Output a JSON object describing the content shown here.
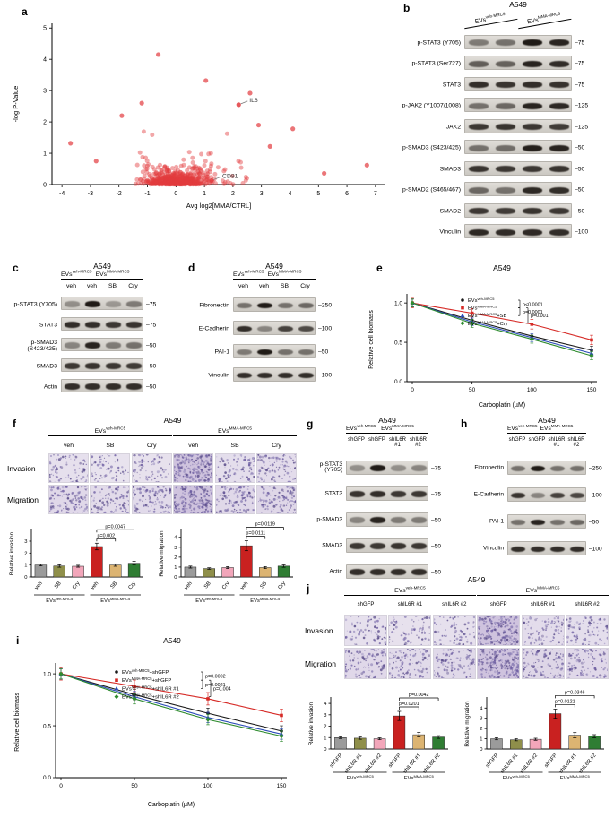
{
  "figure": {
    "bg": "#ffffff",
    "cell_line": "A549"
  },
  "panels": {
    "a": {
      "label": "a",
      "chart_data": {
        "type": "scatter",
        "xlabel": "Avg log2[MMA/CTRL]",
        "ylabel": "-log P-Value",
        "xlim": [
          -4.35,
          7.35
        ],
        "ylim": [
          0,
          5
        ],
        "xticks": [
          -4,
          -3,
          -2,
          -1,
          0,
          1,
          2,
          3,
          4,
          5,
          6,
          7
        ],
        "yticks": [
          0,
          1,
          2,
          3,
          4,
          5
        ],
        "point_color": "#e23b3e",
        "annotations": [
          {
            "label": "IL6",
            "x": 2.2,
            "y": 2.55
          },
          {
            "label": "CD81",
            "x": 1.25,
            "y": 0.13
          }
        ],
        "notable_points": [
          [
            -0.62,
            4.15
          ],
          [
            1.05,
            3.32
          ],
          [
            2.6,
            2.92
          ],
          [
            -1.9,
            2.2
          ],
          [
            6.7,
            0.62
          ],
          [
            -3.7,
            1.32
          ],
          [
            4.1,
            1.78
          ],
          [
            3.3,
            1.22
          ],
          [
            -2.8,
            0.75
          ],
          [
            5.2,
            0.36
          ],
          [
            2.9,
            1.9
          ],
          [
            -1.2,
            2.6
          ]
        ],
        "cloud": {
          "n": 540,
          "seed": 987654
        }
      }
    },
    "b": {
      "label": "b",
      "title": "A549",
      "groups": [
        {
          "name": "EVs^{veh-MRC5}",
          "lanes": [
            "",
            ""
          ]
        },
        {
          "name": "EVs^{MMA-MRC5}",
          "lanes": [
            "",
            ""
          ]
        }
      ],
      "rows": [
        {
          "label": "p-STAT3 (Y705)",
          "mw": "75",
          "bands": [
            0.45,
            0.5,
            0.95,
            0.9
          ]
        },
        {
          "label": "p-STAT3 (Ser727)",
          "mw": "75",
          "bands": [
            0.6,
            0.58,
            0.9,
            0.86
          ]
        },
        {
          "label": "STAT3",
          "mw": "75",
          "bands": [
            0.85,
            0.82,
            0.85,
            0.83
          ]
        },
        {
          "label": "p-JAK2 (Y1007/1008)",
          "mw": "125",
          "bands": [
            0.5,
            0.55,
            0.9,
            0.88
          ]
        },
        {
          "label": "JAK2",
          "mw": "125",
          "bands": [
            0.8,
            0.82,
            0.8,
            0.78
          ]
        },
        {
          "label": "p-SMAD3 (S423/425)",
          "mw": "50",
          "bands": [
            0.5,
            0.52,
            0.92,
            0.9
          ]
        },
        {
          "label": "SMAD3",
          "mw": "50",
          "bands": [
            0.82,
            0.8,
            0.8,
            0.82
          ]
        },
        {
          "label": "p-SMAD2 (S465/467)",
          "mw": "50",
          "bands": [
            0.55,
            0.5,
            0.88,
            0.85
          ]
        },
        {
          "label": "SMAD2",
          "mw": "50",
          "bands": [
            0.8,
            0.78,
            0.82,
            0.8
          ]
        },
        {
          "label": "Vinculin",
          "mw": "100",
          "bands": [
            0.88,
            0.86,
            0.87,
            0.85
          ]
        }
      ]
    },
    "c": {
      "label": "c",
      "title": "A549",
      "groups": [
        {
          "name": "EVs^{veh-MRC5}",
          "lanes": [
            "veh"
          ]
        },
        {
          "name": "EVs^{MMA-MRC5}",
          "lanes": [
            "veh",
            "SB",
            "Cry"
          ]
        }
      ],
      "rows": [
        {
          "label": "p-STAT3 (Y705)",
          "mw": "75",
          "bands": [
            0.35,
            0.95,
            0.3,
            0.45
          ]
        },
        {
          "label": "STAT3",
          "mw": "75",
          "bands": [
            0.85,
            0.85,
            0.8,
            0.82
          ]
        },
        {
          "label": "p-SMAD3 (S423/425)",
          "mw": "50",
          "bands": [
            0.4,
            0.9,
            0.45,
            0.5
          ]
        },
        {
          "label": "SMAD3",
          "mw": "50",
          "bands": [
            0.8,
            0.82,
            0.8,
            0.78
          ]
        },
        {
          "label": "Actin",
          "mw": "50",
          "bands": [
            0.85,
            0.85,
            0.85,
            0.85
          ]
        }
      ]
    },
    "d": {
      "label": "d",
      "title": "A549",
      "groups": [
        {
          "name": "EVs^{veh-MRC5}",
          "lanes": [
            "veh"
          ]
        },
        {
          "name": "EVs^{MMA-MRC5}",
          "lanes": [
            "veh",
            "SB",
            "Cry"
          ]
        }
      ],
      "rows": [
        {
          "label": "Fibronectin",
          "mw": "250",
          "bands": [
            0.5,
            0.95,
            0.5,
            0.55
          ]
        },
        {
          "label": "E-Cadherin",
          "mw": "100",
          "bands": [
            0.85,
            0.4,
            0.75,
            0.7
          ]
        },
        {
          "label": "PAI-1",
          "mw": "50",
          "bands": [
            0.45,
            0.95,
            0.5,
            0.5
          ]
        },
        {
          "label": "Vinculin",
          "mw": "100",
          "bands": [
            0.85,
            0.85,
            0.85,
            0.85
          ]
        }
      ]
    },
    "e": {
      "label": "e",
      "chart_data": {
        "type": "line",
        "title": "A549",
        "xlabel": "Carboplatin (µM)",
        "ylabel": "Relative cell biomass",
        "x": [
          0,
          50,
          100,
          150
        ],
        "yticks": [
          0,
          0.5,
          1
        ],
        "ylim": [
          0,
          1
        ],
        "series": [
          {
            "name": "EVs^{veh-MRC5}",
            "color": "#1a1a1a",
            "marker": "circle",
            "err": 0.05,
            "values": [
              1.0,
              0.78,
              0.58,
              0.4
            ]
          },
          {
            "name": "EVs^{MMA-MRC5}",
            "color": "#d62a26",
            "marker": "square",
            "err": 0.06,
            "values": [
              1.0,
              0.87,
              0.73,
              0.53
            ]
          },
          {
            "name": "EVs^{MMA-MRC5}+SB",
            "color": "#2c4cb8",
            "marker": "triangle",
            "err": 0.05,
            "values": [
              1.0,
              0.76,
              0.56,
              0.36
            ]
          },
          {
            "name": "EVs^{MMA-MRC5}+Cry",
            "color": "#2e8b2e",
            "marker": "diamond",
            "err": 0.05,
            "values": [
              1.0,
              0.74,
              0.54,
              0.33
            ]
          }
        ],
        "comparisons": [
          {
            "a": 0,
            "b": 1,
            "p": "p<0.0001"
          },
          {
            "a": 1,
            "b": 2,
            "p": "p=0.0001"
          },
          {
            "a": 1,
            "b": 3,
            "p": "p=0.001"
          }
        ]
      }
    },
    "f": {
      "label": "f",
      "title": "A549",
      "groups": [
        "EVs^{veh-MRC5}",
        "EVs^{MMA-MRC5}"
      ],
      "conditions": [
        "veh",
        "SB",
        "Cry"
      ],
      "well_rows": [
        {
          "label": "Invasion",
          "density": [
            0.3,
            0.25,
            0.28,
            1.0,
            0.35,
            0.4
          ]
        },
        {
          "label": "Migration",
          "density": [
            0.5,
            0.42,
            0.45,
            1.0,
            0.5,
            0.52
          ]
        }
      ],
      "bar_colors": [
        "#9b9b9b",
        "#8f8f4a",
        "#f2a6ba",
        "#c92120",
        "#dcb472",
        "#2f7d33"
      ],
      "charts": [
        {
          "type": "bar",
          "ylabel": "Relative invasion",
          "categories": [
            "veh",
            "SB",
            "Cry",
            "veh",
            "SB",
            "Cry"
          ],
          "values": [
            1.0,
            0.92,
            0.9,
            2.55,
            1.0,
            1.15
          ],
          "errors": [
            0.07,
            0.1,
            0.08,
            0.28,
            0.1,
            0.15
          ],
          "yticks": [
            0,
            1,
            2,
            3
          ],
          "ymax": 3.9,
          "brackets": [
            {
              "from": 3,
              "to": 4,
              "p": "p=0.002"
            },
            {
              "from": 3,
              "to": 5,
              "p": "p=0.0047"
            }
          ],
          "group_labels": [
            "EVs^{veh-MRC5}",
            "EVs^{MMA-MRC5}"
          ]
        },
        {
          "type": "bar",
          "ylabel": "Relative migration",
          "categories": [
            "veh",
            "SB",
            "Cry",
            "veh",
            "SB",
            "Cry"
          ],
          "values": [
            1.0,
            0.85,
            0.95,
            3.15,
            0.95,
            1.1
          ],
          "errors": [
            0.1,
            0.08,
            0.1,
            0.5,
            0.1,
            0.12
          ],
          "yticks": [
            0,
            1,
            2,
            3,
            4
          ],
          "ymax": 4.7,
          "brackets": [
            {
              "from": 3,
              "to": 4,
              "p": "p=0.0111"
            },
            {
              "from": 3,
              "to": 5,
              "p": "p=0.0119"
            }
          ],
          "group_labels": [
            "EVs^{veh-MRC5}",
            "EVs^{MMA-MRC5}"
          ]
        }
      ]
    },
    "g": {
      "label": "g",
      "title": "A549",
      "groups": [
        {
          "name": "EVs^{veh-MRC5}",
          "lanes": [
            "shGFP"
          ]
        },
        {
          "name": "EVs^{MMA-MRC5}",
          "lanes": [
            "shGFP",
            "shIL6R\n#1",
            "shIL6R\n#2"
          ]
        }
      ],
      "rows": [
        {
          "label": "p-STAT3\n(Y705)",
          "mw": "75",
          "bands": [
            0.35,
            0.95,
            0.35,
            0.4
          ]
        },
        {
          "label": "STAT3",
          "mw": "75",
          "bands": [
            0.82,
            0.85,
            0.8,
            0.8
          ]
        },
        {
          "label": "p-SMAD3",
          "mw": "50",
          "bands": [
            0.4,
            0.9,
            0.45,
            0.45
          ]
        },
        {
          "label": "SMAD3",
          "mw": "50",
          "bands": [
            0.8,
            0.8,
            0.82,
            0.8
          ]
        },
        {
          "label": "Actin",
          "mw": "50",
          "bands": [
            0.85,
            0.85,
            0.85,
            0.85
          ]
        }
      ]
    },
    "h": {
      "label": "h",
      "title": "A549",
      "groups": [
        {
          "name": "EVs^{veh-MRC5}",
          "lanes": [
            "shGFP"
          ]
        },
        {
          "name": "EVs^{MMA-MRC5}",
          "lanes": [
            "shGFP",
            "shIL6R\n#1",
            "shIL6R\n#2"
          ]
        }
      ],
      "rows": [
        {
          "label": "Fibronectin",
          "mw": "250",
          "bands": [
            0.5,
            0.95,
            0.5,
            0.5
          ]
        },
        {
          "label": "E-Cadherin",
          "mw": "100",
          "bands": [
            0.82,
            0.4,
            0.75,
            0.72
          ]
        },
        {
          "label": "PAI-1",
          "mw": "50",
          "bands": [
            0.5,
            0.9,
            0.5,
            0.55
          ]
        },
        {
          "label": "Vinculin",
          "mw": "100",
          "bands": [
            0.85,
            0.85,
            0.85,
            0.85
          ]
        }
      ]
    },
    "i": {
      "label": "i",
      "chart_data": {
        "type": "line",
        "title": "A549",
        "xlabel": "Carboplatin (µM)",
        "ylabel": "Relative cell biomass",
        "x": [
          0,
          50,
          100,
          150
        ],
        "yticks": [
          0,
          0.5,
          1
        ],
        "ylim": [
          0,
          1
        ],
        "series": [
          {
            "name": "EVs^{veh-MRC5}+shGFP",
            "color": "#1a1a1a",
            "marker": "circle",
            "err": 0.05,
            "values": [
              1.0,
              0.8,
              0.62,
              0.45
            ]
          },
          {
            "name": "EVs^{MMA-MRC5}+shGFP",
            "color": "#d62a26",
            "marker": "square",
            "err": 0.06,
            "values": [
              1.0,
              0.88,
              0.76,
              0.6
            ]
          },
          {
            "name": "EVs^{MMA-MRC5}+shIL6R #1",
            "color": "#2c4cb8",
            "marker": "triangle",
            "err": 0.05,
            "values": [
              1.0,
              0.78,
              0.58,
              0.42
            ]
          },
          {
            "name": "EVs^{MMA-MRC5}+shIL6R #2",
            "color": "#2e8b2e",
            "marker": "diamond",
            "err": 0.05,
            "values": [
              1.0,
              0.76,
              0.56,
              0.4
            ]
          }
        ],
        "comparisons": [
          {
            "a": 0,
            "b": 1,
            "p": "p=0.0002"
          },
          {
            "a": 1,
            "b": 2,
            "p": "p=0.0021"
          },
          {
            "a": 1,
            "b": 3,
            "p": "p=0.004"
          }
        ]
      }
    },
    "j": {
      "label": "j",
      "title": "A549",
      "groups": [
        "EVs^{veh-MRC5}",
        "EVs^{MMA-MRC5}"
      ],
      "conditions": [
        "shGFP",
        "shIL6R #1",
        "shIL6R #2"
      ],
      "well_rows": [
        {
          "label": "Invasion",
          "density": [
            0.3,
            0.28,
            0.3,
            1.0,
            0.4,
            0.35
          ]
        },
        {
          "label": "Migration",
          "density": [
            0.5,
            0.45,
            0.48,
            1.0,
            0.55,
            0.5
          ]
        }
      ],
      "bar_colors": [
        "#9b9b9b",
        "#8f8f4a",
        "#f2a6ba",
        "#c92120",
        "#dcb472",
        "#2f7d33"
      ],
      "charts": [
        {
          "type": "bar",
          "ylabel": "Relative invasion",
          "categories": [
            "shGFP",
            "shIL6R #1",
            "shIL6R #2",
            "shGFP",
            "shIL6R #1",
            "shIL6R #2"
          ],
          "values": [
            1.0,
            0.95,
            0.9,
            2.9,
            1.25,
            1.05
          ],
          "errors": [
            0.08,
            0.1,
            0.08,
            0.4,
            0.2,
            0.12
          ],
          "yticks": [
            0,
            1,
            2,
            3,
            4
          ],
          "ymax": 4.4,
          "brackets": [
            {
              "from": 3,
              "to": 4,
              "p": "p=0.0201"
            },
            {
              "from": 3,
              "to": 5,
              "p": "p=0.0042"
            }
          ],
          "group_labels": [
            "EVs^{veh-MRC5}",
            "EVs^{MMA-MRC5}"
          ]
        },
        {
          "type": "bar",
          "ylabel": "Relative migration",
          "categories": [
            "shGFP",
            "shIL6R #1",
            "shIL6R #2",
            "shGFP",
            "shIL6R #1",
            "shIL6R #2"
          ],
          "values": [
            1.0,
            0.9,
            0.95,
            3.45,
            1.35,
            1.25
          ],
          "errors": [
            0.1,
            0.1,
            0.1,
            0.45,
            0.25,
            0.15
          ],
          "yticks": [
            0,
            1,
            2,
            3,
            4
          ],
          "ymax": 4.9,
          "brackets": [
            {
              "from": 3,
              "to": 4,
              "p": "p=0.0121"
            },
            {
              "from": 3,
              "to": 5,
              "p": "p=0.0346"
            }
          ],
          "group_labels": [
            "EVs^{veh-MRC5}",
            "EVs^{MMA-MRC5}"
          ]
        }
      ]
    }
  }
}
